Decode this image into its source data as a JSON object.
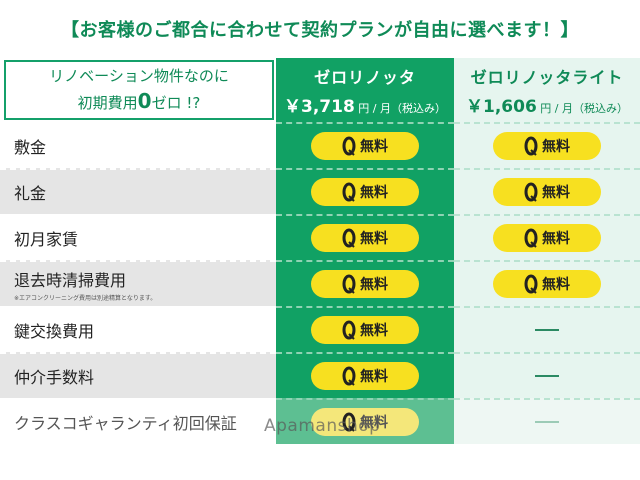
{
  "banner": "【お客様のご都合に合わせて契約プランが自由に選べます！】",
  "header": {
    "line1": "リノベーション物件なのに",
    "line2_pre": "初期費用",
    "line2_zero": "0",
    "line2_post": "ゼロ !?"
  },
  "plans": [
    {
      "name": "ゼロリノッタ",
      "amount": "￥3,718",
      "unit": "円 / 月（税込み）"
    },
    {
      "name": "ゼロリノッタライト",
      "amount": "￥1,606",
      "unit": "円 / 月（税込み）"
    }
  ],
  "badge_label": "無料",
  "badge_zero": "0",
  "rows": [
    {
      "label": "敷金",
      "plan1": "free",
      "plan2": "free"
    },
    {
      "label": "礼金",
      "plan1": "free",
      "plan2": "free"
    },
    {
      "label": "初月家賃",
      "plan1": "free",
      "plan2": "free"
    },
    {
      "label": "退去時清掃費用",
      "note": "※エアコンクリーニング費用は別途精算となります。",
      "plan1": "free",
      "plan2": "free"
    },
    {
      "label": "鍵交換費用",
      "plan1": "free",
      "plan2": "none"
    },
    {
      "label": "仲介手数料",
      "plan1": "free",
      "plan2": "none"
    },
    {
      "label": "クラスコギャランティ初回保証",
      "plan1": "free",
      "plan2": "none"
    }
  ],
  "watermark": "Apamanshop",
  "colors": {
    "green": "#11a164",
    "light_green": "#e6f5ef",
    "yellow": "#f7e020",
    "dark_green_text": "#0f8a57"
  }
}
